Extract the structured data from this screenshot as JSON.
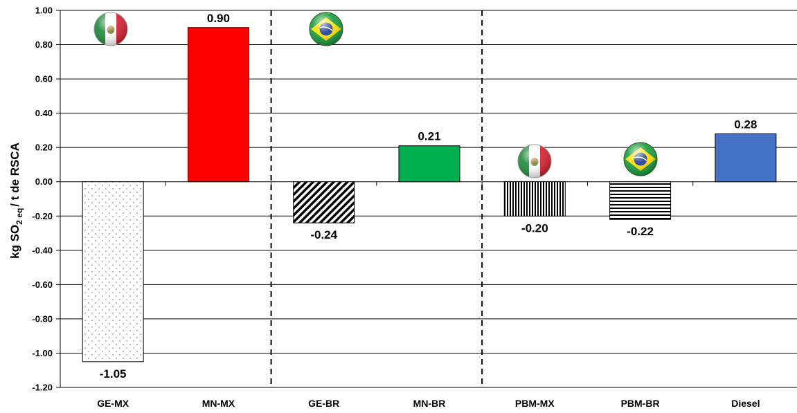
{
  "chart_data": {
    "type": "bar",
    "categories": [
      "GE-MX",
      "MN-MX",
      "GE-BR",
      "MN-BR",
      "PBM-MX",
      "PBM-BR",
      "Diesel"
    ],
    "values": [
      -1.05,
      0.9,
      -0.24,
      0.21,
      -0.2,
      -0.22,
      0.28
    ],
    "data_labels": [
      "-1.05",
      "0.90",
      "-0.24",
      "0.21",
      "-0.20",
      "-0.22",
      "0.28"
    ],
    "title": "",
    "xlabel": "",
    "ylabel": {
      "prefix": "kg SO",
      "subscript1": "2",
      "subscript2": "eq",
      "suffix": "/  t de RSCA"
    },
    "ylim": [
      -1.2,
      1.0
    ],
    "yticks": [
      "1.00",
      "0.80",
      "0.60",
      "0.40",
      "0.20",
      "0.00",
      "-0.20",
      "-0.40",
      "-0.60",
      "-0.80",
      "-1.00",
      "-1.20"
    ],
    "ytick_values": [
      1.0,
      0.8,
      0.6,
      0.4,
      0.2,
      0.0,
      -0.2,
      -0.4,
      -0.6,
      -0.8,
      -1.0,
      -1.2
    ],
    "grid": true,
    "legend": "none",
    "bar_styles": [
      {
        "fill": "dots",
        "color": "#ffffff",
        "pattern_color": "#8c8c8c"
      },
      {
        "fill": "solid",
        "color": "#ff0000"
      },
      {
        "fill": "diagonal",
        "color": "#ffffff",
        "pattern_color": "#000000"
      },
      {
        "fill": "solid",
        "color": "#00b050"
      },
      {
        "fill": "vertical",
        "color": "#ffffff",
        "pattern_color": "#000000"
      },
      {
        "fill": "horizontal",
        "color": "#ffffff",
        "pattern_color": "#000000"
      },
      {
        "fill": "solid",
        "color": "#4472c4"
      }
    ],
    "group_separators_after": [
      2,
      4
    ],
    "flag_icons": [
      {
        "name": "mexico-flag-icon",
        "category": "GE-MX"
      },
      {
        "name": "brazil-flag-icon",
        "category": "GE-BR"
      },
      {
        "name": "mexico-flag-icon",
        "category": "PBM-MX"
      },
      {
        "name": "brazil-flag-icon",
        "category": "PBM-BR"
      }
    ]
  }
}
